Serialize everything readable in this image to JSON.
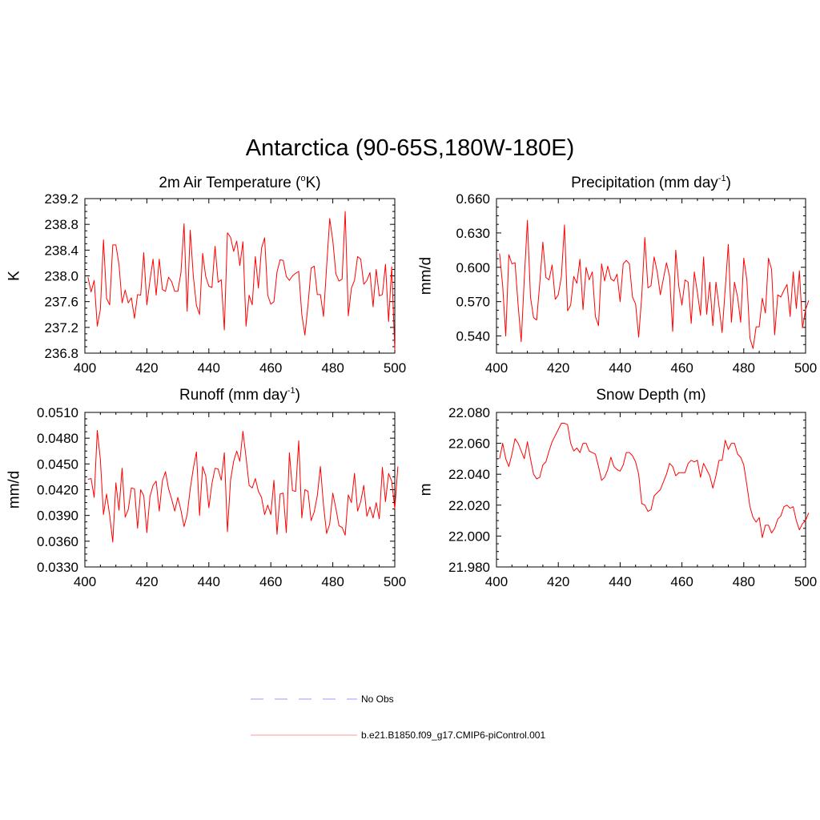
{
  "figure": {
    "title": "Antarctica (90-65S,180W-180E)"
  },
  "legend": {
    "obs_label": "No Obs",
    "obs_color": "#9999ff",
    "model_label": "b.e21.B1850.f09_g17.CMIP6-piControl.001",
    "model_color": "#ff9999"
  },
  "line_color": "#ff0000",
  "chart_data": [
    {
      "type": "line",
      "title": "2m Air Temperature (",
      "title_sup": "o",
      "title_end": "K)",
      "ylabel": "K",
      "xlabel": "",
      "xlim": [
        400,
        500
      ],
      "ylim": [
        236.8,
        239.2
      ],
      "x_ticks": [
        400,
        420,
        440,
        460,
        480,
        500
      ],
      "y_ticks": [
        236.8,
        237.2,
        237.6,
        238.0,
        238.4,
        238.8,
        239.2
      ],
      "y_tick_labels": [
        "236.8",
        "237.2",
        "237.6",
        "238.0",
        "238.4",
        "238.8",
        "239.2"
      ],
      "x_start": 401,
      "series": [
        {
          "values": [
            237.98,
            237.75,
            237.93,
            237.22,
            237.48,
            238.56,
            237.65,
            237.55,
            238.48,
            238.48,
            238.18,
            237.58,
            237.78,
            237.58,
            237.66,
            237.34,
            237.71,
            237.7,
            238.36,
            237.55,
            237.93,
            238.26,
            237.7,
            238.26,
            237.79,
            237.76,
            237.98,
            237.91,
            237.76,
            237.76,
            238.05,
            238.81,
            237.45,
            238.71,
            237.99,
            237.54,
            237.4,
            238.35,
            237.99,
            237.84,
            237.82,
            238.46,
            237.9,
            237.94,
            237.16,
            238.67,
            238.6,
            238.38,
            238.54,
            238.16,
            238.53,
            237.22,
            237.7,
            237.55,
            238.3,
            237.81,
            238.43,
            238.59,
            237.7,
            237.56,
            237.6,
            238.06,
            238.25,
            238.24,
            237.99,
            237.93,
            238.0,
            238.04,
            238.07,
            237.4,
            237.08,
            237.55,
            238.12,
            238.15,
            237.71,
            237.71,
            237.37,
            238.14,
            238.89,
            238.55,
            238.03,
            237.92,
            237.95,
            239.0,
            237.38,
            237.81,
            237.93,
            238.3,
            238.26,
            237.87,
            237.93,
            238.05,
            237.52,
            238.1,
            237.69,
            237.71,
            238.18,
            237.29,
            238.14,
            236.85
          ]
        }
      ]
    },
    {
      "type": "line",
      "title": "Precipitation (mm day",
      "title_sup": "-1",
      "title_end": ")",
      "ylabel": "mm/d",
      "xlabel": "",
      "xlim": [
        400,
        500
      ],
      "ylim": [
        0.525,
        0.66
      ],
      "x_ticks": [
        400,
        420,
        440,
        460,
        480,
        500
      ],
      "y_ticks": [
        0.54,
        0.57,
        0.6,
        0.63,
        0.66
      ],
      "y_tick_labels": [
        "0.540",
        "0.570",
        "0.600",
        "0.630",
        "0.660"
      ],
      "x_start": 401,
      "series": [
        {
          "values": [
            0.612,
            0.584,
            0.54,
            0.611,
            0.603,
            0.604,
            0.567,
            0.535,
            0.59,
            0.641,
            0.574,
            0.556,
            0.554,
            0.586,
            0.622,
            0.591,
            0.589,
            0.602,
            0.572,
            0.576,
            0.592,
            0.637,
            0.562,
            0.567,
            0.592,
            0.586,
            0.607,
            0.563,
            0.6,
            0.589,
            0.596,
            0.557,
            0.549,
            0.603,
            0.588,
            0.601,
            0.59,
            0.588,
            0.594,
            0.57,
            0.603,
            0.606,
            0.603,
            0.574,
            0.568,
            0.539,
            0.575,
            0.626,
            0.582,
            0.584,
            0.609,
            0.596,
            0.576,
            0.59,
            0.604,
            0.592,
            0.544,
            0.615,
            0.583,
            0.567,
            0.589,
            0.587,
            0.551,
            0.596,
            0.578,
            0.558,
            0.609,
            0.559,
            0.587,
            0.549,
            0.587,
            0.566,
            0.543,
            0.581,
            0.62,
            0.552,
            0.587,
            0.574,
            0.552,
            0.608,
            0.589,
            0.538,
            0.529,
            0.548,
            0.548,
            0.573,
            0.56,
            0.608,
            0.598,
            0.541,
            0.576,
            0.574,
            0.58,
            0.585,
            0.557,
            0.596,
            0.564,
            0.597,
            0.547,
            0.563,
            0.571
          ]
        }
      ]
    },
    {
      "type": "line",
      "title": "Runoff (mm day",
      "title_sup": "-1",
      "title_end": ")",
      "ylabel": "mm/d",
      "xlabel": "",
      "xlim": [
        400,
        500
      ],
      "ylim": [
        0.033,
        0.051
      ],
      "x_ticks": [
        400,
        420,
        440,
        460,
        480,
        500
      ],
      "y_ticks": [
        0.033,
        0.036,
        0.039,
        0.042,
        0.045,
        0.048,
        0.051
      ],
      "y_tick_labels": [
        "0.0330",
        "0.0360",
        "0.0390",
        "0.0420",
        "0.0450",
        "0.0480",
        "0.0510"
      ],
      "x_start": 401,
      "series": [
        {
          "values": [
            0.0432,
            0.0433,
            0.0411,
            0.0489,
            0.0455,
            0.0391,
            0.0415,
            0.039,
            0.0359,
            0.0428,
            0.0396,
            0.0445,
            0.0388,
            0.0397,
            0.0422,
            0.0421,
            0.0375,
            0.042,
            0.0413,
            0.037,
            0.0412,
            0.0425,
            0.043,
            0.0395,
            0.043,
            0.0441,
            0.0421,
            0.0409,
            0.0395,
            0.0411,
            0.0396,
            0.0377,
            0.0391,
            0.0421,
            0.0445,
            0.0464,
            0.039,
            0.0447,
            0.0436,
            0.0399,
            0.0427,
            0.0445,
            0.0444,
            0.0431,
            0.0463,
            0.0371,
            0.0431,
            0.0453,
            0.0465,
            0.0453,
            0.0488,
            0.0458,
            0.0425,
            0.0422,
            0.0433,
            0.0418,
            0.0411,
            0.0391,
            0.0402,
            0.0391,
            0.0431,
            0.0368,
            0.0415,
            0.0416,
            0.037,
            0.0463,
            0.0419,
            0.0418,
            0.0477,
            0.0387,
            0.042,
            0.0418,
            0.0384,
            0.0394,
            0.0413,
            0.0447,
            0.0402,
            0.0369,
            0.038,
            0.0416,
            0.0398,
            0.0378,
            0.0376,
            0.0367,
            0.0414,
            0.0405,
            0.0439,
            0.0395,
            0.0406,
            0.0425,
            0.0389,
            0.04,
            0.0387,
            0.0405,
            0.0386,
            0.0446,
            0.0406,
            0.0439,
            0.043,
            0.0398,
            0.0447
          ]
        }
      ]
    },
    {
      "type": "line",
      "title": "Snow Depth (m)",
      "title_sup": "",
      "title_end": "",
      "ylabel": "m",
      "xlabel": "",
      "xlim": [
        400,
        500
      ],
      "ylim": [
        21.98,
        22.08
      ],
      "x_ticks": [
        400,
        420,
        440,
        460,
        480,
        500
      ],
      "y_ticks": [
        21.98,
        22.0,
        22.02,
        22.04,
        22.06,
        22.08
      ],
      "y_tick_labels": [
        "21.980",
        "22.000",
        "22.020",
        "22.040",
        "22.060",
        "22.080"
      ],
      "x_start": 401,
      "series": [
        {
          "values": [
            22.05,
            22.06,
            22.05,
            22.045,
            22.053,
            22.063,
            22.06,
            22.055,
            22.05,
            22.061,
            22.05,
            22.04,
            22.037,
            22.038,
            22.046,
            22.048,
            22.055,
            22.061,
            22.065,
            22.069,
            22.073,
            22.073,
            22.072,
            22.06,
            22.055,
            22.057,
            22.054,
            22.06,
            22.06,
            22.055,
            22.054,
            22.053,
            22.045,
            22.036,
            22.038,
            22.043,
            22.051,
            22.045,
            22.043,
            22.042,
            22.046,
            22.054,
            22.054,
            22.052,
            22.048,
            22.04,
            22.021,
            22.02,
            22.016,
            22.017,
            22.026,
            22.028,
            22.03,
            22.035,
            22.04,
            22.047,
            22.045,
            22.039,
            22.041,
            22.041,
            22.041,
            22.047,
            22.049,
            22.048,
            22.049,
            22.038,
            22.047,
            22.043,
            22.039,
            22.031,
            22.039,
            22.049,
            22.049,
            22.062,
            22.056,
            22.06,
            22.06,
            22.053,
            22.051,
            22.046,
            22.033,
            22.019,
            22.012,
            22.009,
            22.012,
            21.999,
            22.007,
            22.007,
            22.002,
            22.005,
            22.011,
            22.013,
            22.019,
            22.02,
            22.018,
            22.019,
            22.01,
            22.004,
            22.008,
            22.01,
            22.015
          ]
        }
      ]
    }
  ]
}
